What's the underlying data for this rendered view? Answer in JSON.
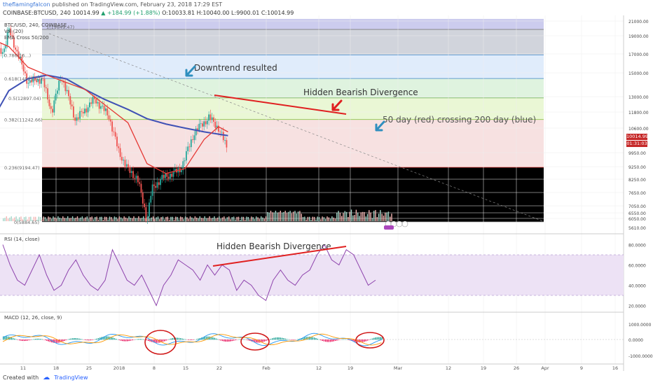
{
  "header": {
    "author": "theflamingfalcon",
    "published": "published on TradingView.com, February 23, 2018 17:29 EST",
    "symbol_line": "COINBASE:BTCUSD, 240  10014.99",
    "change": "▲ +184.99 (+1.88%)",
    "ohlc": "O:10033.81 H:10040.00 L:9900.01 C:10014.99"
  },
  "legend": {
    "symbol": "BTC/USD, 240, COINBASE",
    "vol": "Vol (20)",
    "ema": "EMA Cross 50/200"
  },
  "price_tags": [
    {
      "text": "10014.99",
      "color": "#c62828"
    },
    {
      "text": "01:31:03",
      "color": "#c62828"
    }
  ],
  "price_axis": [
    "21000.00",
    "19000.00",
    "17000.00",
    "15000.00",
    "13000.00",
    "11800.00",
    "10600.00",
    "9950.00",
    "9250.00",
    "8250.00",
    "7650.00",
    "7050.00",
    "6550.00",
    "6050.00",
    "5610.00"
  ],
  "fib_labels": [
    "0.786(16...)",
    "0.618(14521.97)",
    "0.5(12897.04)",
    "0.382(11242.66)",
    "0.236(9194.47)",
    "0(5884.65)"
  ],
  "fib_top_label": "1(19849.47)",
  "annotations": {
    "downtrend": "Downtrend resulted",
    "hidden_bearish": "Hidden Bearish Divergence",
    "cross": "50 day (red) crossing 200 day (blue)",
    "rsi_hidden_bearish": "Hidden Bearish Divergence"
  },
  "rsi": {
    "label": "RSI (14, close)",
    "axis": [
      "80.0000",
      "60.0000",
      "40.0000",
      "20.0000"
    ]
  },
  "macd": {
    "label": "MACD (12, 26, close, 9)",
    "axis": [
      "1000.0000",
      "0.0000",
      "-1000.0000"
    ]
  },
  "time_axis": [
    "11",
    "18",
    "25",
    "2018",
    "8",
    "15",
    "22",
    "Feb",
    "12",
    "19",
    "Mar",
    "12",
    "19",
    "26",
    "Apr",
    "9",
    "16"
  ],
  "footer": {
    "created": "Created with",
    "brand": "TradingView"
  },
  "colors": {
    "ema50": "#e53935",
    "ema200": "#3f51b5",
    "up": "#26a69a",
    "down": "#ef5350",
    "annotation_red": "#e02020",
    "arrow_blue": "#2f8fbf",
    "rsi_line": "#8e44ad"
  },
  "chart_data": {
    "type": "candlestick",
    "title": "BTC/USD, 240, COINBASE",
    "ylim": [
      5610,
      21000
    ],
    "fib_levels": [
      {
        "ratio": "1",
        "price": 19849.47
      },
      {
        "ratio": "0.786",
        "price": 16900
      },
      {
        "ratio": "0.618",
        "price": 14521.97
      },
      {
        "ratio": "0.5",
        "price": 12897.04
      },
      {
        "ratio": "0.382",
        "price": 11242.66
      },
      {
        "ratio": "0.236",
        "price": 9194.47
      },
      {
        "ratio": "0",
        "price": 5884.65
      }
    ],
    "fib_colors": [
      "#d1d4dc",
      "#e0ecfb",
      "#dff3df",
      "#eaf7d5",
      "#f7e1e1"
    ],
    "close_path": [
      {
        "date": "Jan 5",
        "close": 17000
      },
      {
        "date": "Jan 7",
        "close": 17500
      },
      {
        "date": "Jan 8",
        "close": 19800
      },
      {
        "date": "Jan 10",
        "close": 16800
      },
      {
        "date": "Jan 12",
        "close": 14200
      },
      {
        "date": "Jan 15",
        "close": 14500
      },
      {
        "date": "Jan 17",
        "close": 11800
      },
      {
        "date": "Jan 19",
        "close": 14800
      },
      {
        "date": "Jan 22",
        "close": 11200
      },
      {
        "date": "Jan 26",
        "close": 12800
      },
      {
        "date": "Jan 29",
        "close": 11500
      },
      {
        "date": "Jan 31",
        "close": 10000
      },
      {
        "date": "Feb 2",
        "close": 9000
      },
      {
        "date": "Feb 4",
        "close": 8300
      },
      {
        "date": "Feb 6",
        "close": 6000
      },
      {
        "date": "Feb 7",
        "close": 7800
      },
      {
        "date": "Feb 9",
        "close": 8300
      },
      {
        "date": "Feb 13",
        "close": 9000
      },
      {
        "date": "Feb 16",
        "close": 10500
      },
      {
        "date": "Feb 19",
        "close": 11400
      },
      {
        "date": "Feb 21",
        "close": 10600
      },
      {
        "date": "Feb 23",
        "close": 10015
      }
    ],
    "ema50": [
      {
        "date": "Jan 5",
        "value": 18500
      },
      {
        "date": "Jan 8",
        "value": 17800
      },
      {
        "date": "Jan 12",
        "value": 15600
      },
      {
        "date": "Jan 16",
        "value": 14800
      },
      {
        "date": "Jan 20",
        "value": 14200
      },
      {
        "date": "Jan 24",
        "value": 13600
      },
      {
        "date": "Jan 28",
        "value": 12400
      },
      {
        "date": "Feb 2",
        "value": 11000
      },
      {
        "date": "Feb 6",
        "value": 9400
      },
      {
        "date": "Feb 10",
        "value": 8700
      },
      {
        "date": "Feb 14",
        "value": 9100
      },
      {
        "date": "Feb 18",
        "value": 10300
      },
      {
        "date": "Feb 21",
        "value": 10700
      },
      {
        "date": "Feb 23",
        "value": 10500
      }
    ],
    "ema200": [
      {
        "date": "Jan 5",
        "value": 11500
      },
      {
        "date": "Jan 8",
        "value": 13500
      },
      {
        "date": "Jan 12",
        "value": 14500
      },
      {
        "date": "Jan 16",
        "value": 14800
      },
      {
        "date": "Jan 20",
        "value": 14500
      },
      {
        "date": "Jan 24",
        "value": 13600
      },
      {
        "date": "Jan 28",
        "value": 12800
      },
      {
        "date": "Feb 2",
        "value": 12000
      },
      {
        "date": "Feb 6",
        "value": 11300
      },
      {
        "date": "Feb 10",
        "value": 10900
      },
      {
        "date": "Feb 14",
        "value": 10600
      },
      {
        "date": "Feb 18",
        "value": 10500
      },
      {
        "date": "Feb 23",
        "value": 10400
      }
    ],
    "rsi_values": [
      80,
      60,
      45,
      40,
      55,
      70,
      50,
      35,
      40,
      55,
      65,
      50,
      40,
      35,
      45,
      75,
      60,
      45,
      40,
      50,
      35,
      20,
      40,
      50,
      65,
      60,
      55,
      45,
      60,
      50,
      60,
      55,
      35,
      45,
      40,
      30,
      25,
      45,
      55,
      45,
      40,
      50,
      55,
      70,
      80,
      65,
      60,
      75,
      70,
      55,
      40,
      45
    ],
    "rsi_band": [
      30,
      70
    ],
    "macd_circles": [
      "Jan 10",
      "Jan 31",
      "Feb 20"
    ]
  }
}
